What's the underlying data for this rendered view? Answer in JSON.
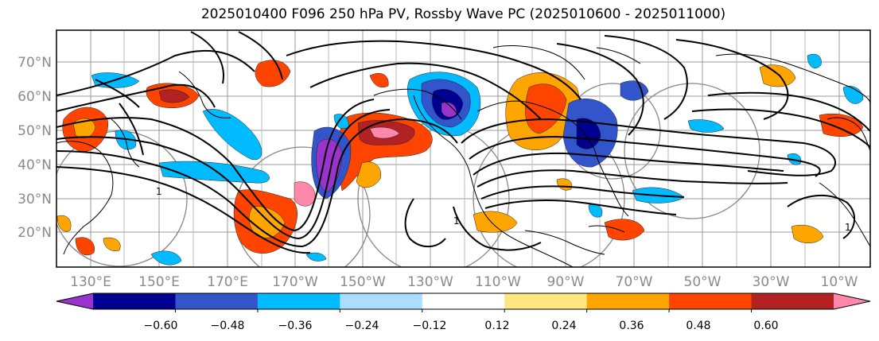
{
  "title": "2025010400 F096 250 hPa PV, Rossby Wave PC (2025010600 - 2025011000)",
  "map": {
    "latitude_labels": [
      "70°N",
      "60°N",
      "50°N",
      "40°N",
      "30°N",
      "20°N"
    ],
    "longitude_labels": [
      "130°E",
      "150°E",
      "170°E",
      "170°W",
      "150°W",
      "130°W",
      "110°W",
      "90°W",
      "70°W",
      "50°W",
      "30°W",
      "10°W"
    ],
    "contour_labels": [
      "1",
      "1",
      "1"
    ]
  },
  "colorbar": {
    "colors": [
      "#9933cc",
      "#000090",
      "#3355cc",
      "#00bbff",
      "#aaddff",
      "#ffffff",
      "#ffe680",
      "#ffa500",
      "#ff4400",
      "#b22222",
      "#ff88aa"
    ],
    "tick_labels": [
      "−0.60",
      "−0.48",
      "−0.36",
      "−0.24",
      "−0.12",
      "0.12",
      "0.24",
      "0.36",
      "0.48",
      "0.60"
    ]
  }
}
